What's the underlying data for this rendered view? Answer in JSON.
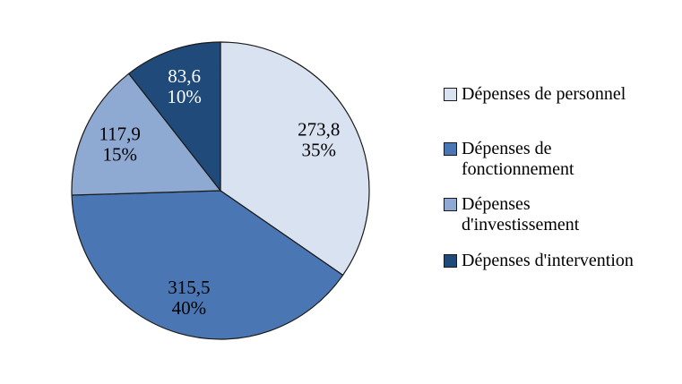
{
  "chart_data": {
    "type": "pie",
    "start_angle_deg": 0,
    "direction": "clockwise",
    "legend_position": "right",
    "background_color": "#FFFFFF",
    "stroke_color": "#1A1A1A",
    "slices": [
      {
        "label": "Dépenses de personnel",
        "legend_label": "Dépenses de personnel",
        "value": 273.8,
        "value_label": "273,8",
        "percent": 35,
        "percent_label": "35%",
        "color": "#D9E2F0",
        "text_color": "#000000"
      },
      {
        "label": "Dépenses de fonctionnement",
        "legend_label": "Dépenses de\nfonctionnement",
        "value": 315.5,
        "value_label": "315,5",
        "percent": 40,
        "percent_label": "40%",
        "color": "#4A77B4",
        "text_color": "#000000"
      },
      {
        "label": "Dépenses d'investissement",
        "legend_label": "Dépenses\nd'investissement",
        "value": 117.9,
        "value_label": "117,9",
        "percent": 15,
        "percent_label": "15%",
        "color": "#8EA9D2",
        "text_color": "#000000"
      },
      {
        "label": "Dépenses d'intervention",
        "legend_label": "Dépenses d'intervention",
        "value": 83.6,
        "value_label": "83,6",
        "percent": 10,
        "percent_label": "10%",
        "color": "#1F4A7A",
        "text_color": "#FFFFFF"
      }
    ]
  }
}
